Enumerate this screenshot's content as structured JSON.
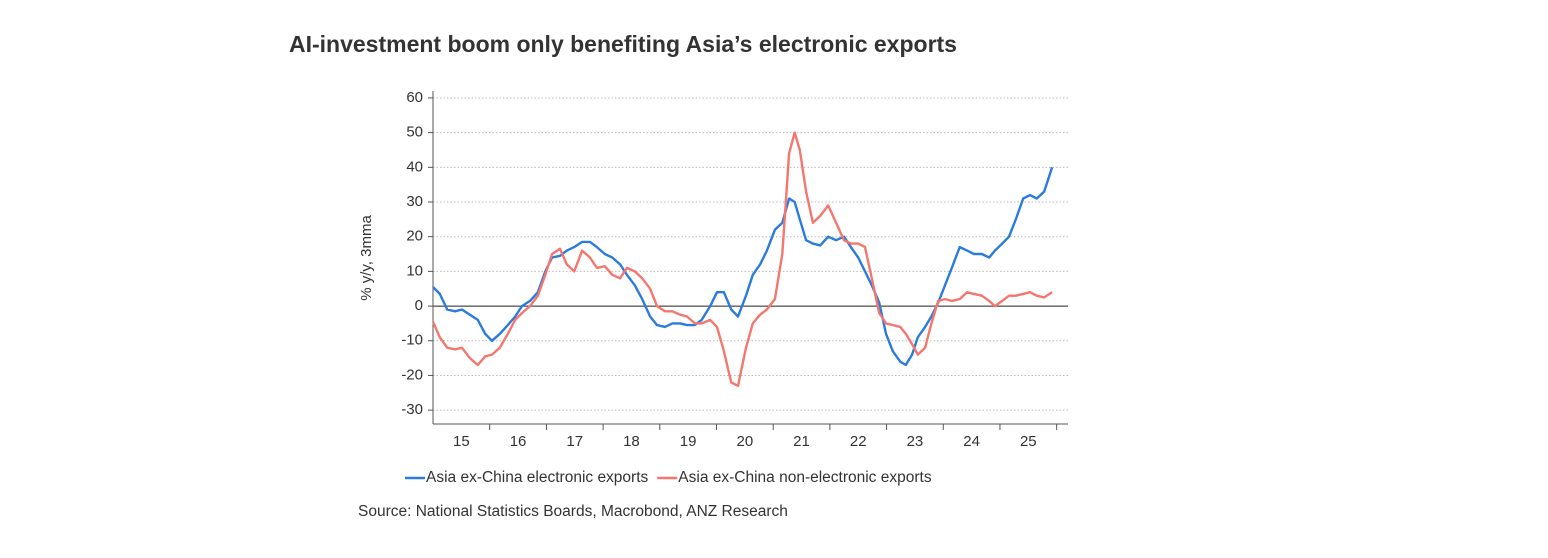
{
  "chart_data": {
    "type": "line",
    "title": "AI-investment boom only benefiting Asia’s electronic exports",
    "y_label": "% y/y, 3mma",
    "source": "Source: National Statistics Boards, Macrobond, ANZ Research",
    "x": [
      15.0,
      15.12,
      15.25,
      15.39,
      15.51,
      15.65,
      15.79,
      15.92,
      16.04,
      16.18,
      16.32,
      16.45,
      16.57,
      16.71,
      16.85,
      16.98,
      17.1,
      17.24,
      17.36,
      17.49,
      17.63,
      17.77,
      17.89,
      18.03,
      18.16,
      18.3,
      18.42,
      18.56,
      18.69,
      18.83,
      18.95,
      19.09,
      19.22,
      19.36,
      19.48,
      19.62,
      19.74,
      19.89,
      20.01,
      20.13,
      20.26,
      20.38,
      20.52,
      20.64,
      20.77,
      20.89,
      21.03,
      21.16,
      21.28,
      21.38,
      21.47,
      21.58,
      21.7,
      21.83,
      21.97,
      22.11,
      22.25,
      22.37,
      22.5,
      22.62,
      22.74,
      22.87,
      22.99,
      23.11,
      23.24,
      23.34,
      23.45,
      23.55,
      23.68,
      23.79,
      23.91,
      24.03,
      24.15,
      24.29,
      24.42,
      24.54,
      24.68,
      24.81,
      24.91,
      25.04,
      25.16,
      25.28,
      25.41,
      25.53,
      25.65,
      25.78,
      25.92
    ],
    "series": [
      {
        "name": "Asia ex-China electronic exports",
        "color": "#2b7bdc",
        "values": [
          5.5,
          3.5,
          -1,
          -1.5,
          -1,
          -2.5,
          -4,
          -8,
          -10,
          -8,
          -5.5,
          -3,
          0,
          1.5,
          4,
          10,
          14,
          14.5,
          16,
          17,
          18.5,
          18.5,
          17,
          15,
          14,
          12,
          9,
          6,
          2,
          -3,
          -5.5,
          -6,
          -5,
          -5,
          -5.5,
          -5.5,
          -4,
          0,
          4,
          4,
          -1,
          -3,
          3,
          9,
          12,
          16,
          22,
          24,
          31,
          30,
          25,
          19,
          18,
          17.5,
          20,
          19,
          20,
          17,
          14,
          10,
          6,
          1,
          -8,
          -13,
          -16,
          -17,
          -14,
          -9,
          -6,
          -3,
          1,
          6,
          11,
          17,
          16,
          15,
          15,
          14,
          16,
          18,
          20,
          25,
          31,
          32,
          31,
          33,
          40
        ]
      },
      {
        "name": "Asia ex-China non-electronic exports",
        "color": "#f4776e",
        "values": [
          -4.5,
          -9,
          -12,
          -12.5,
          -12,
          -15,
          -17,
          -14.5,
          -14,
          -12,
          -8,
          -4,
          -2,
          0,
          3,
          9,
          15,
          16.5,
          12,
          10,
          16,
          14,
          11,
          11.5,
          9,
          8,
          11,
          10,
          8,
          5,
          0,
          -1.5,
          -1.5,
          -2.5,
          -3,
          -5,
          -5,
          -4,
          -6,
          -13,
          -22,
          -23,
          -12,
          -5,
          -2.5,
          -1,
          2,
          15,
          44,
          50,
          45,
          33,
          24,
          26,
          29,
          24,
          19,
          18,
          18,
          17,
          8,
          -2,
          -5,
          -5.5,
          -6,
          -8,
          -11,
          -14,
          -12,
          -5,
          1.5,
          2,
          1.5,
          2,
          4,
          3.5,
          3,
          1.5,
          0,
          1.5,
          3,
          3,
          3.5,
          4,
          3,
          2.5,
          4
        ]
      }
    ],
    "xlim": [
      15,
      26.2
    ],
    "xticks": [
      {
        "value": 15.5,
        "label": "15"
      },
      {
        "value": 16.5,
        "label": "16"
      },
      {
        "value": 17.5,
        "label": "17"
      },
      {
        "value": 18.5,
        "label": "18"
      },
      {
        "value": 19.5,
        "label": "19"
      },
      {
        "value": 20.5,
        "label": "20"
      },
      {
        "value": 21.5,
        "label": "21"
      },
      {
        "value": 22.5,
        "label": "22"
      },
      {
        "value": 23.5,
        "label": "23"
      },
      {
        "value": 24.5,
        "label": "24"
      },
      {
        "value": 25.5,
        "label": "25"
      }
    ],
    "xminorticks": [
      16,
      17,
      18,
      19,
      20,
      21,
      22,
      23,
      24,
      25,
      26
    ],
    "ylim": [
      -34,
      62
    ],
    "yticks": [
      -30,
      -20,
      -10,
      0,
      10,
      20,
      30,
      40,
      50,
      60
    ],
    "grid": true
  }
}
